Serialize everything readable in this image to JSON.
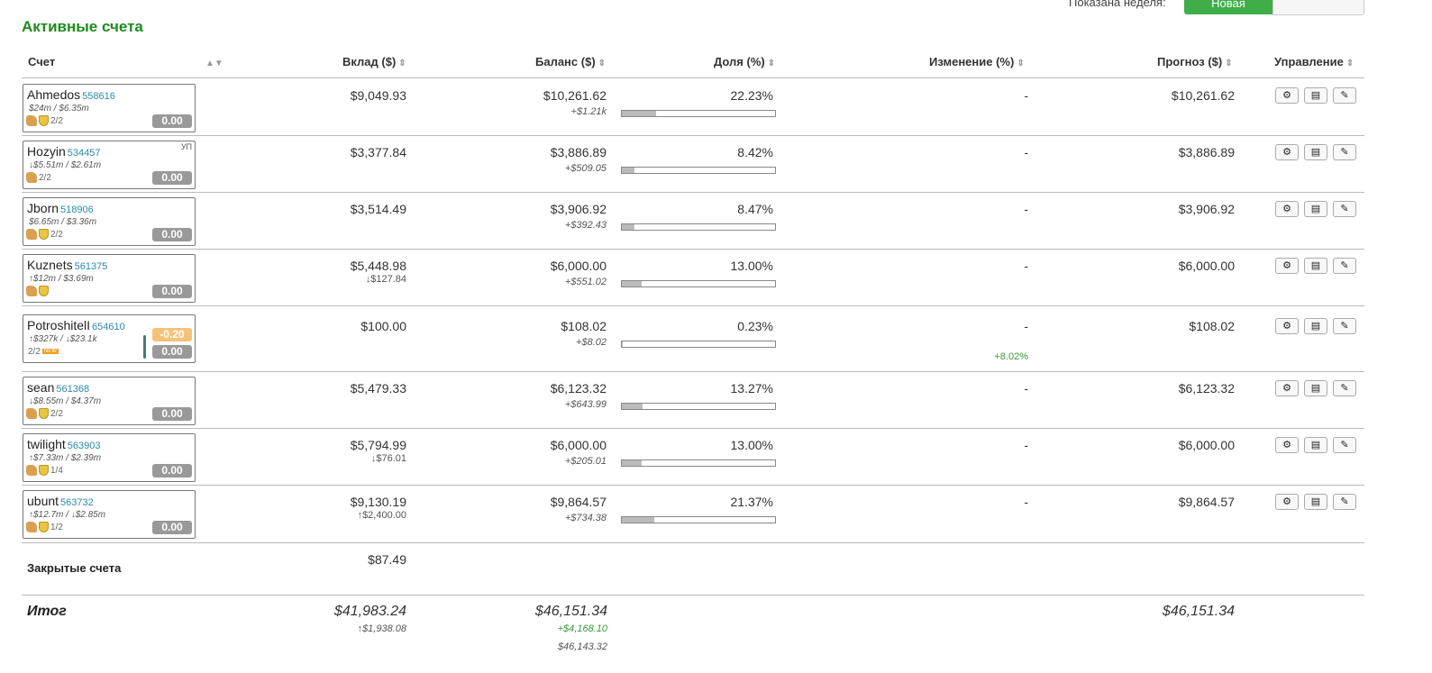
{
  "page_title": "Активные счета",
  "week_label": "Показана неделя:",
  "week_toggle": {
    "active": "Новая",
    "inactive": ""
  },
  "columns": [
    "Счет",
    "Вклад ($)",
    "Баланс ($)",
    "Доля (%)",
    "Изменение (%)",
    "Прогноз ($)",
    "Управление"
  ],
  "sort_icon": "sort-icon",
  "rows": [
    {
      "name": "Ahmedos",
      "id": "558616",
      "volume": "$24m / $6.35m",
      "frac": "2/2",
      "badge": "0.00",
      "has_thumb": true,
      "deposit": "$9,049.93",
      "deposit_sub": "",
      "balance": "$10,261.62",
      "balance_sub": "+$1.21k",
      "share": "22.23%",
      "share_fraction": 0.2223,
      "change": "-",
      "change_sub": "",
      "forecast": "$10,261.62"
    },
    {
      "name": "Hozyin",
      "id": "534457",
      "volume": "↓$5.51m / $2.61m",
      "frac": "2/2",
      "badge": "0.00",
      "tag": "УП",
      "has_thumb": true,
      "has_shield": false,
      "deposit": "$3,377.84",
      "deposit_sub": "",
      "balance": "$3,886.89",
      "balance_sub": "+$509.05",
      "share": "8.42%",
      "share_fraction": 0.0842,
      "change": "-",
      "change_sub": "",
      "forecast": "$3,886.89"
    },
    {
      "name": "Jborn",
      "id": "518906",
      "volume": "$6.65m / $3.36m",
      "frac": "2/2",
      "badge": "0.00",
      "has_thumb": true,
      "deposit": "$3,514.49",
      "deposit_sub": "",
      "balance": "$3,906.92",
      "balance_sub": "+$392.43",
      "share": "8.47%",
      "share_fraction": 0.0847,
      "change": "-",
      "change_sub": "",
      "forecast": "$3,906.92"
    },
    {
      "name": "Kuznets",
      "id": "561375",
      "volume": "↑$12m / $3.69m",
      "frac": "",
      "badge": "0.00",
      "has_thumb": true,
      "deposit": "$5,448.98",
      "deposit_sub": "↓$127.84",
      "balance": "$6,000.00",
      "balance_sub": "+$551.02",
      "share": "13.00%",
      "share_fraction": 0.13,
      "change": "-",
      "change_sub": "",
      "forecast": "$6,000.00"
    },
    {
      "name": "PotroshitelI",
      "id": "654610",
      "volume": "↑$327k / ↓$23.1k",
      "frac": "2/2",
      "badge": "0.00",
      "badge_neg": "-0.20",
      "is_new": "NEW",
      "has_thumb": false,
      "deposit": "$100.00",
      "deposit_sub": "",
      "balance": "$108.02",
      "balance_sub": "+$8.02",
      "share": "0.23%",
      "share_fraction": 0.0023,
      "change": "-",
      "change_sub": "+8.02%",
      "forecast": "$108.02"
    },
    {
      "name": "sean",
      "id": "561368",
      "volume": "↓$8.55m / $4.37m",
      "frac": "2/2",
      "badge": "0.00",
      "has_thumb": true,
      "deposit": "$5,479.33",
      "deposit_sub": "",
      "balance": "$6,123.32",
      "balance_sub": "+$643.99",
      "share": "13.27%",
      "share_fraction": 0.1327,
      "change": "-",
      "change_sub": "",
      "forecast": "$6,123.32"
    },
    {
      "name": "twilight",
      "id": "563903",
      "volume": "↑$7.33m / $2.39m",
      "frac": "1/4",
      "badge": "0.00",
      "has_thumb": true,
      "deposit": "$5,794.99",
      "deposit_sub": "↓$76.01",
      "balance": "$6,000.00",
      "balance_sub": "+$205.01",
      "share": "13.00%",
      "share_fraction": 0.13,
      "change": "-",
      "change_sub": "",
      "forecast": "$6,000.00"
    },
    {
      "name": "ubunt",
      "id": "563732",
      "volume": "↑$12.7m / ↓$2.85m",
      "frac": "1/2",
      "badge": "0.00",
      "has_thumb": true,
      "deposit": "$9,130.19",
      "deposit_sub": "↑$2,400.00",
      "balance": "$9,864.57",
      "balance_sub": "+$734.38",
      "share": "21.37%",
      "share_fraction": 0.2137,
      "change": "-",
      "change_sub": "",
      "forecast": "$9,864.57"
    }
  ],
  "closed": {
    "label": "Закрытые счета",
    "deposit": "$87.49"
  },
  "total": {
    "label": "Итог",
    "deposit": "$41,983.24",
    "deposit_sub": "↑$1,938.08",
    "balance": "$46,151.34",
    "balance_sub1": "+$4,168.10",
    "balance_sub2": "$46,143.32",
    "forecast": "$46,151.34"
  },
  "actions": [
    "gear-icon",
    "list-icon",
    "pencil-icon"
  ],
  "colors": {
    "title": "#1e8a1e",
    "toggle_active": "#3fae49",
    "id_link": "#2a8aa8",
    "badge": "#999999",
    "badge_neg": "#f5c27a",
    "positive": "#3a9a3a"
  }
}
